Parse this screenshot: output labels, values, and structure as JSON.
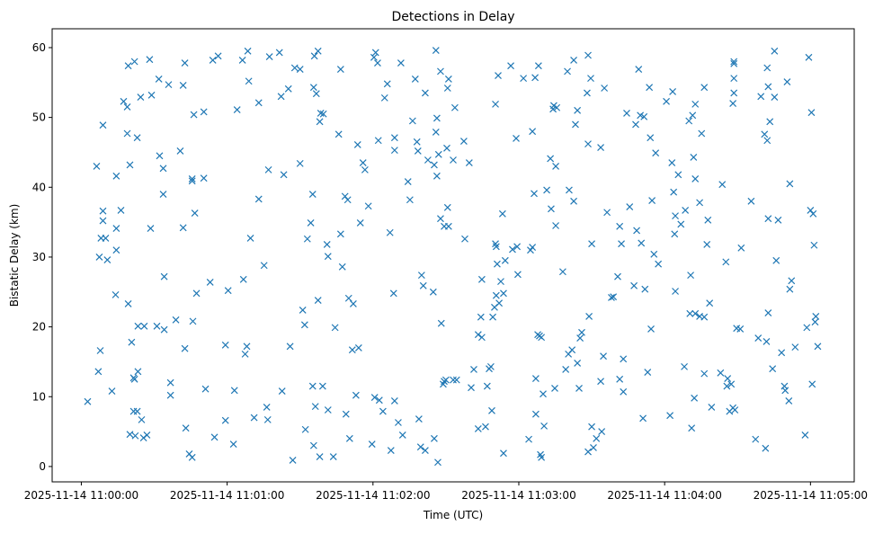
{
  "chart_data": {
    "type": "scatter",
    "title": "Detections in Delay",
    "xlabel": "Time (UTC)",
    "ylabel": "Bistatic Delay (km)",
    "x_units": "seconds after 2025-11-14 11:00:00",
    "xlim": [
      -12,
      318
    ],
    "ylim": [
      -2.2,
      62.7
    ],
    "x_ticks": [
      0,
      60,
      120,
      180,
      240,
      300
    ],
    "x_tick_labels": [
      "2025-11-14 11:00:00",
      "2025-11-14 11:01:00",
      "2025-11-14 11:02:00",
      "2025-11-14 11:03:00",
      "2025-11-14 11:04:00",
      "2025-11-14 11:05:00"
    ],
    "y_ticks": [
      0,
      10,
      20,
      30,
      40,
      50,
      60
    ],
    "y_tick_labels": [
      "0",
      "10",
      "20",
      "30",
      "40",
      "50",
      "60"
    ],
    "grid": false,
    "marker": "x",
    "color": "#1f77b4",
    "points": [
      [
        2.6,
        9.3
      ],
      [
        6.3,
        43.0
      ],
      [
        7.4,
        30.0
      ],
      [
        7.0,
        13.6
      ],
      [
        7.8,
        16.6
      ],
      [
        8.1,
        32.7
      ],
      [
        8.9,
        48.9
      ],
      [
        8.9,
        36.6
      ],
      [
        8.9,
        35.2
      ],
      [
        10.0,
        32.7
      ],
      [
        10.7,
        29.6
      ],
      [
        12.6,
        10.8
      ],
      [
        14.1,
        24.6
      ],
      [
        14.4,
        41.6
      ],
      [
        14.4,
        34.1
      ],
      [
        14.4,
        31.0
      ],
      [
        16.3,
        36.7
      ],
      [
        17.4,
        52.3
      ],
      [
        18.9,
        51.5
      ],
      [
        18.9,
        47.7
      ],
      [
        19.3,
        57.4
      ],
      [
        19.3,
        23.3
      ],
      [
        20.0,
        43.2
      ],
      [
        20.0,
        4.6
      ],
      [
        20.7,
        17.8
      ],
      [
        21.5,
        12.7
      ],
      [
        21.5,
        7.9
      ],
      [
        21.9,
        58.0
      ],
      [
        21.9,
        12.5
      ],
      [
        22.2,
        4.4
      ],
      [
        23.0,
        47.1
      ],
      [
        23.3,
        13.6
      ],
      [
        23.0,
        7.9
      ],
      [
        23.3,
        20.1
      ],
      [
        24.4,
        52.9
      ],
      [
        24.8,
        6.7
      ],
      [
        25.6,
        4.1
      ],
      [
        25.9,
        20.1
      ],
      [
        27.0,
        4.5
      ],
      [
        28.1,
        58.3
      ],
      [
        28.5,
        34.1
      ],
      [
        28.9,
        53.2
      ],
      [
        31.1,
        20.1
      ],
      [
        31.9,
        55.5
      ],
      [
        32.2,
        44.5
      ],
      [
        33.7,
        42.7
      ],
      [
        33.7,
        39.0
      ],
      [
        34.1,
        27.2
      ],
      [
        34.1,
        19.6
      ],
      [
        35.9,
        54.7
      ],
      [
        36.7,
        12.0
      ],
      [
        36.7,
        10.2
      ],
      [
        38.9,
        21.0
      ],
      [
        40.7,
        45.2
      ],
      [
        41.9,
        54.6
      ],
      [
        41.9,
        34.2
      ],
      [
        42.6,
        16.9
      ],
      [
        42.6,
        57.8
      ],
      [
        43.0,
        5.5
      ],
      [
        44.4,
        1.8
      ],
      [
        45.6,
        41.2
      ],
      [
        45.6,
        40.9
      ],
      [
        45.6,
        1.3
      ],
      [
        45.9,
        20.8
      ],
      [
        46.3,
        50.4
      ],
      [
        46.7,
        36.3
      ],
      [
        47.4,
        24.8
      ],
      [
        50.4,
        41.3
      ],
      [
        50.4,
        50.8
      ],
      [
        51.1,
        11.1
      ],
      [
        53.0,
        26.4
      ],
      [
        54.1,
        58.2
      ],
      [
        54.8,
        4.2
      ],
      [
        56.3,
        58.8
      ],
      [
        59.3,
        17.4
      ],
      [
        59.3,
        6.6
      ],
      [
        60.4,
        25.2
      ],
      [
        62.6,
        3.2
      ],
      [
        63.0,
        10.9
      ],
      [
        64.1,
        51.1
      ],
      [
        66.3,
        58.2
      ],
      [
        66.7,
        26.8
      ],
      [
        67.4,
        16.1
      ],
      [
        68.1,
        17.2
      ],
      [
        68.5,
        59.5
      ],
      [
        68.9,
        55.2
      ],
      [
        69.6,
        32.7
      ],
      [
        71.1,
        7.0
      ],
      [
        73.0,
        38.3
      ],
      [
        73.0,
        52.1
      ],
      [
        75.2,
        28.8
      ],
      [
        76.3,
        8.5
      ],
      [
        76.7,
        6.7
      ],
      [
        77.0,
        42.5
      ],
      [
        77.4,
        58.7
      ],
      [
        81.5,
        59.3
      ],
      [
        82.2,
        53.0
      ],
      [
        82.6,
        10.8
      ],
      [
        83.3,
        41.8
      ],
      [
        85.2,
        54.1
      ],
      [
        85.9,
        17.2
      ],
      [
        87.0,
        0.9
      ],
      [
        87.8,
        57.1
      ],
      [
        90.0,
        56.9
      ],
      [
        90.0,
        43.4
      ],
      [
        91.1,
        22.4
      ],
      [
        91.9,
        20.3
      ],
      [
        92.2,
        5.3
      ],
      [
        93.0,
        32.6
      ],
      [
        94.4,
        34.9
      ],
      [
        95.2,
        39.0
      ],
      [
        95.2,
        11.5
      ],
      [
        95.6,
        54.3
      ],
      [
        95.6,
        3.0
      ],
      [
        95.9,
        58.8
      ],
      [
        96.3,
        8.6
      ],
      [
        96.7,
        53.4
      ],
      [
        97.4,
        59.5
      ],
      [
        97.4,
        23.8
      ],
      [
        98.1,
        1.4
      ],
      [
        98.1,
        49.4
      ],
      [
        98.5,
        50.6
      ],
      [
        99.3,
        11.5
      ],
      [
        99.6,
        50.5
      ],
      [
        101.1,
        31.8
      ],
      [
        101.5,
        8.1
      ],
      [
        101.5,
        30.1
      ],
      [
        103.7,
        1.4
      ],
      [
        104.4,
        19.9
      ],
      [
        105.9,
        47.6
      ],
      [
        106.7,
        56.9
      ],
      [
        106.7,
        33.3
      ],
      [
        107.4,
        28.6
      ],
      [
        108.5,
        38.7
      ],
      [
        108.9,
        7.5
      ],
      [
        110.0,
        24.1
      ],
      [
        110.4,
        4.0
      ],
      [
        109.6,
        38.2
      ],
      [
        111.9,
        23.3
      ],
      [
        113.0,
        10.2
      ],
      [
        111.5,
        16.7
      ],
      [
        114.1,
        17.0
      ],
      [
        113.7,
        46.1
      ],
      [
        114.8,
        34.9
      ],
      [
        115.9,
        43.5
      ],
      [
        116.7,
        42.5
      ],
      [
        118.1,
        37.3
      ],
      [
        119.6,
        3.2
      ],
      [
        120.4,
        58.6
      ],
      [
        120.7,
        9.9
      ],
      [
        121.1,
        59.3
      ],
      [
        121.9,
        57.8
      ],
      [
        122.2,
        46.7
      ],
      [
        122.6,
        9.5
      ],
      [
        124.1,
        7.9
      ],
      [
        124.8,
        52.8
      ],
      [
        125.9,
        54.8
      ],
      [
        127.0,
        33.5
      ],
      [
        127.4,
        2.3
      ],
      [
        128.5,
        24.8
      ],
      [
        128.9,
        45.3
      ],
      [
        128.9,
        9.4
      ],
      [
        128.9,
        47.1
      ],
      [
        130.4,
        6.3
      ],
      [
        131.5,
        57.8
      ],
      [
        132.2,
        4.5
      ],
      [
        134.4,
        40.8
      ],
      [
        135.2,
        38.2
      ],
      [
        136.3,
        49.5
      ],
      [
        137.4,
        55.5
      ],
      [
        138.1,
        46.5
      ],
      [
        138.5,
        45.2
      ],
      [
        138.9,
        6.8
      ],
      [
        139.6,
        2.8
      ],
      [
        140.0,
        27.4
      ],
      [
        140.7,
        25.9
      ],
      [
        141.5,
        53.5
      ],
      [
        141.5,
        2.3
      ],
      [
        142.6,
        43.9
      ],
      [
        144.8,
        25.0
      ],
      [
        145.2,
        43.2
      ],
      [
        145.2,
        4.0
      ],
      [
        145.9,
        59.6
      ],
      [
        145.9,
        47.9
      ],
      [
        146.3,
        41.6
      ],
      [
        146.3,
        49.9
      ],
      [
        146.7,
        0.6
      ],
      [
        147.0,
        44.7
      ],
      [
        147.8,
        35.5
      ],
      [
        147.8,
        56.6
      ],
      [
        148.1,
        20.5
      ],
      [
        148.9,
        11.8
      ],
      [
        149.3,
        12.2
      ],
      [
        149.3,
        34.4
      ],
      [
        150.0,
        12.4
      ],
      [
        150.4,
        45.6
      ],
      [
        150.7,
        37.1
      ],
      [
        151.1,
        34.4
      ],
      [
        150.7,
        54.2
      ],
      [
        151.1,
        55.5
      ],
      [
        153.0,
        12.4
      ],
      [
        153.0,
        43.9
      ],
      [
        153.7,
        51.4
      ],
      [
        154.4,
        12.4
      ],
      [
        157.4,
        46.6
      ],
      [
        157.8,
        32.6
      ],
      [
        159.6,
        43.5
      ],
      [
        160.4,
        11.3
      ],
      [
        161.5,
        13.9
      ],
      [
        163.3,
        18.9
      ],
      [
        163.3,
        5.4
      ],
      [
        164.4,
        21.4
      ],
      [
        164.8,
        18.5
      ],
      [
        164.8,
        26.8
      ],
      [
        166.3,
        5.7
      ],
      [
        167.0,
        11.5
      ],
      [
        167.8,
        14.0
      ],
      [
        168.5,
        14.3
      ],
      [
        168.9,
        8.0
      ],
      [
        169.3,
        21.4
      ],
      [
        170.0,
        22.8
      ],
      [
        170.4,
        51.9
      ],
      [
        170.4,
        31.9
      ],
      [
        170.7,
        31.5
      ],
      [
        170.7,
        24.5
      ],
      [
        171.1,
        29.0
      ],
      [
        171.5,
        56.0
      ],
      [
        171.9,
        23.4
      ],
      [
        172.6,
        26.5
      ],
      [
        173.3,
        36.2
      ],
      [
        173.7,
        24.8
      ],
      [
        173.7,
        1.9
      ],
      [
        174.4,
        29.5
      ],
      [
        176.7,
        57.4
      ],
      [
        177.4,
        31.1
      ],
      [
        178.9,
        47.0
      ],
      [
        179.3,
        31.5
      ],
      [
        179.6,
        27.5
      ],
      [
        181.9,
        55.6
      ],
      [
        184.1,
        3.9
      ],
      [
        184.8,
        31.0
      ],
      [
        185.6,
        48.0
      ],
      [
        185.6,
        31.4
      ],
      [
        186.3,
        39.1
      ],
      [
        186.7,
        55.7
      ],
      [
        187.0,
        12.6
      ],
      [
        187.0,
        7.5
      ],
      [
        187.8,
        18.9
      ],
      [
        188.1,
        57.4
      ],
      [
        188.5,
        18.7
      ],
      [
        188.9,
        1.7
      ],
      [
        189.3,
        1.3
      ],
      [
        189.3,
        18.5
      ],
      [
        190.0,
        10.4
      ],
      [
        190.4,
        5.8
      ],
      [
        191.5,
        39.6
      ],
      [
        193.0,
        44.1
      ],
      [
        193.3,
        36.9
      ],
      [
        194.1,
        51.2
      ],
      [
        194.4,
        51.7
      ],
      [
        194.8,
        11.2
      ],
      [
        195.2,
        34.5
      ],
      [
        195.2,
        43.0
      ],
      [
        195.6,
        51.4
      ],
      [
        198.1,
        27.9
      ],
      [
        199.3,
        13.9
      ],
      [
        200.0,
        56.6
      ],
      [
        200.4,
        16.1
      ],
      [
        200.7,
        39.6
      ],
      [
        201.9,
        16.7
      ],
      [
        202.6,
        58.2
      ],
      [
        202.6,
        38.0
      ],
      [
        203.3,
        49.0
      ],
      [
        204.1,
        51.0
      ],
      [
        204.1,
        14.8
      ],
      [
        204.8,
        11.2
      ],
      [
        205.2,
        18.4
      ],
      [
        205.9,
        19.2
      ],
      [
        208.1,
        53.5
      ],
      [
        208.5,
        58.9
      ],
      [
        208.5,
        46.2
      ],
      [
        208.5,
        2.1
      ],
      [
        208.9,
        21.5
      ],
      [
        209.6,
        55.6
      ],
      [
        210.0,
        31.9
      ],
      [
        210.0,
        5.7
      ],
      [
        210.7,
        2.7
      ],
      [
        211.9,
        4.0
      ],
      [
        213.7,
        45.7
      ],
      [
        213.7,
        12.2
      ],
      [
        214.1,
        5.0
      ],
      [
        214.8,
        15.8
      ],
      [
        215.2,
        54.2
      ],
      [
        216.3,
        36.4
      ],
      [
        218.1,
        24.2
      ],
      [
        218.9,
        24.3
      ],
      [
        220.7,
        27.2
      ],
      [
        221.5,
        12.5
      ],
      [
        221.5,
        34.4
      ],
      [
        222.2,
        31.9
      ],
      [
        223.0,
        15.4
      ],
      [
        223.0,
        10.7
      ],
      [
        224.4,
        50.6
      ],
      [
        225.6,
        37.2
      ],
      [
        227.4,
        25.9
      ],
      [
        228.1,
        49.0
      ],
      [
        228.5,
        33.8
      ],
      [
        229.3,
        56.9
      ],
      [
        230.0,
        50.3
      ],
      [
        230.4,
        32.0
      ],
      [
        231.1,
        6.9
      ],
      [
        231.5,
        50.1
      ],
      [
        231.9,
        25.4
      ],
      [
        233.0,
        13.5
      ],
      [
        233.7,
        54.3
      ],
      [
        234.1,
        47.1
      ],
      [
        234.4,
        19.7
      ],
      [
        234.8,
        38.1
      ],
      [
        235.6,
        30.4
      ],
      [
        236.3,
        44.9
      ],
      [
        237.4,
        29.0
      ],
      [
        240.7,
        52.3
      ],
      [
        242.2,
        7.3
      ],
      [
        243.0,
        43.5
      ],
      [
        243.3,
        53.7
      ],
      [
        243.7,
        39.3
      ],
      [
        244.1,
        33.3
      ],
      [
        244.4,
        25.1
      ],
      [
        244.4,
        35.9
      ],
      [
        245.6,
        41.8
      ],
      [
        246.7,
        34.7
      ],
      [
        248.1,
        14.3
      ],
      [
        248.5,
        36.7
      ],
      [
        250.0,
        49.5
      ],
      [
        250.4,
        21.9
      ],
      [
        250.7,
        27.4
      ],
      [
        251.1,
        5.5
      ],
      [
        251.5,
        50.3
      ],
      [
        251.9,
        44.3
      ],
      [
        252.2,
        9.8
      ],
      [
        252.6,
        51.9
      ],
      [
        252.6,
        41.2
      ],
      [
        252.6,
        21.9
      ],
      [
        254.4,
        21.5
      ],
      [
        254.4,
        37.8
      ],
      [
        255.2,
        47.7
      ],
      [
        256.3,
        54.3
      ],
      [
        256.3,
        21.4
      ],
      [
        256.3,
        13.3
      ],
      [
        257.4,
        31.8
      ],
      [
        257.8,
        35.3
      ],
      [
        258.5,
        23.4
      ],
      [
        259.3,
        8.5
      ],
      [
        263.0,
        13.4
      ],
      [
        263.7,
        40.4
      ],
      [
        265.2,
        29.3
      ],
      [
        265.6,
        11.5
      ],
      [
        265.9,
        12.6
      ],
      [
        266.7,
        7.9
      ],
      [
        267.4,
        11.8
      ],
      [
        268.1,
        52.0
      ],
      [
        268.1,
        8.4
      ],
      [
        268.5,
        55.6
      ],
      [
        268.5,
        53.5
      ],
      [
        268.5,
        58.0
      ],
      [
        268.5,
        57.7
      ],
      [
        268.9,
        8.1
      ],
      [
        269.6,
        19.8
      ],
      [
        271.1,
        19.7
      ],
      [
        271.5,
        31.3
      ],
      [
        275.6,
        38.0
      ],
      [
        277.4,
        3.9
      ],
      [
        278.5,
        18.4
      ],
      [
        279.6,
        53.0
      ],
      [
        281.1,
        47.6
      ],
      [
        281.5,
        2.6
      ],
      [
        281.9,
        17.9
      ],
      [
        282.2,
        57.1
      ],
      [
        282.2,
        46.7
      ],
      [
        282.6,
        54.4
      ],
      [
        282.6,
        35.5
      ],
      [
        282.6,
        22.0
      ],
      [
        283.3,
        49.4
      ],
      [
        284.4,
        14.0
      ],
      [
        285.2,
        59.5
      ],
      [
        285.2,
        52.9
      ],
      [
        285.9,
        29.5
      ],
      [
        286.7,
        35.3
      ],
      [
        288.1,
        16.3
      ],
      [
        289.3,
        11.5
      ],
      [
        289.6,
        10.9
      ],
      [
        290.4,
        55.1
      ],
      [
        291.1,
        9.4
      ],
      [
        291.5,
        40.5
      ],
      [
        291.5,
        25.4
      ],
      [
        292.2,
        26.6
      ],
      [
        293.7,
        17.1
      ],
      [
        297.8,
        4.5
      ],
      [
        298.5,
        19.9
      ],
      [
        299.3,
        58.6
      ],
      [
        300.0,
        36.7
      ],
      [
        300.4,
        50.7
      ],
      [
        300.7,
        11.8
      ],
      [
        301.1,
        36.2
      ],
      [
        301.5,
        31.7
      ],
      [
        301.9,
        20.7
      ],
      [
        302.2,
        21.5
      ],
      [
        303.0,
        17.2
      ]
    ]
  }
}
